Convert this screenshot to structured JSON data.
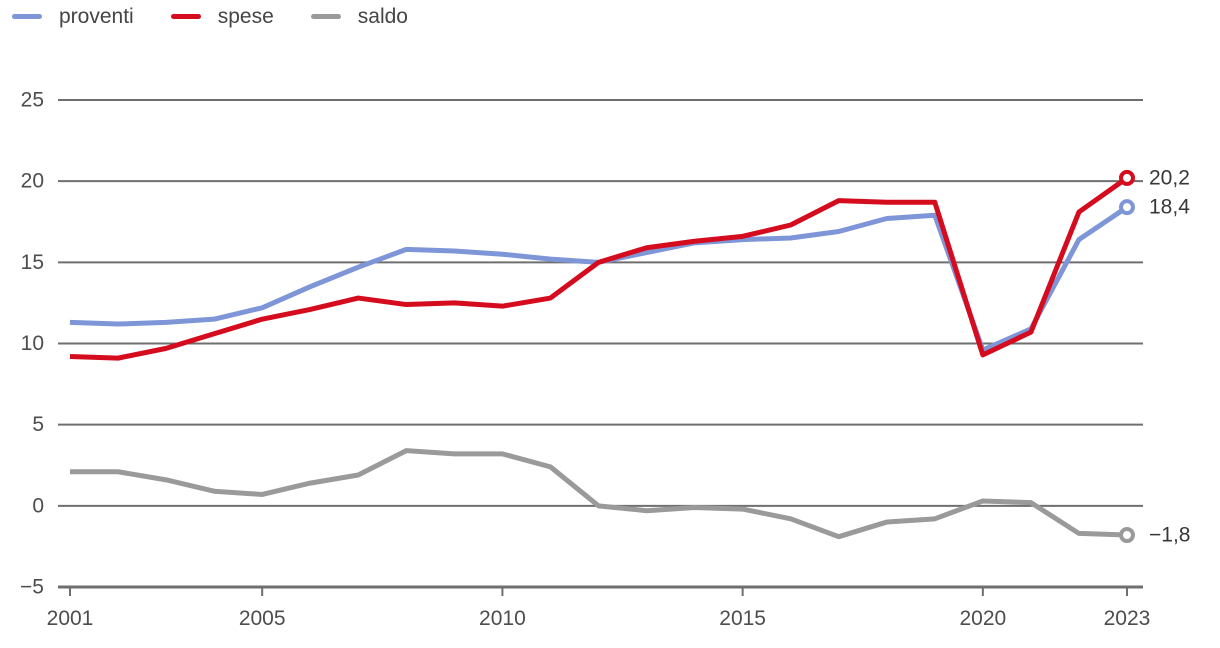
{
  "chart_data": {
    "type": "line",
    "title": "",
    "xlabel": "",
    "ylabel": "",
    "x": [
      2001,
      2002,
      2003,
      2004,
      2005,
      2006,
      2007,
      2008,
      2009,
      2010,
      2011,
      2012,
      2013,
      2014,
      2015,
      2016,
      2017,
      2018,
      2019,
      2020,
      2021,
      2022,
      2023
    ],
    "xticks": [
      2001,
      2005,
      2010,
      2015,
      2020,
      2023
    ],
    "yticks": [
      25,
      20,
      15,
      10,
      5,
      0,
      -5
    ],
    "ylim": [
      -5,
      25
    ],
    "grid": true,
    "legend_position": "top-left",
    "decimal_separator": ",",
    "series": [
      {
        "name": "proventi",
        "color": "#7e96d8",
        "end_label": "18,4",
        "values": [
          11.3,
          11.2,
          11.3,
          11.5,
          12.2,
          13.5,
          14.7,
          15.8,
          15.7,
          15.5,
          15.2,
          15.0,
          15.6,
          16.2,
          16.4,
          16.5,
          16.9,
          17.7,
          17.9,
          9.6,
          10.9,
          16.4,
          18.4
        ]
      },
      {
        "name": "spese",
        "color": "#d40c1e",
        "end_label": "20,2",
        "values": [
          9.2,
          9.1,
          9.7,
          10.6,
          11.5,
          12.1,
          12.8,
          12.4,
          12.5,
          12.3,
          12.8,
          15.0,
          15.9,
          16.3,
          16.6,
          17.3,
          18.8,
          18.7,
          18.7,
          9.3,
          10.7,
          18.1,
          20.2
        ]
      },
      {
        "name": "saldo",
        "color": "#9a9a9a",
        "end_label": "−1,8",
        "values": [
          2.1,
          2.1,
          1.6,
          0.9,
          0.7,
          1.4,
          1.9,
          3.4,
          3.2,
          3.2,
          2.4,
          0.0,
          -0.3,
          -0.1,
          -0.2,
          -0.8,
          -1.9,
          -1.0,
          -0.8,
          0.3,
          0.2,
          -1.7,
          -1.8
        ]
      }
    ],
    "axis_color": "#6f6f6f",
    "grid_color": "#6f6f6f",
    "tick_text_color": "#4d4d4d",
    "end_label_color": "#383838",
    "background_color": "#ffffff"
  }
}
